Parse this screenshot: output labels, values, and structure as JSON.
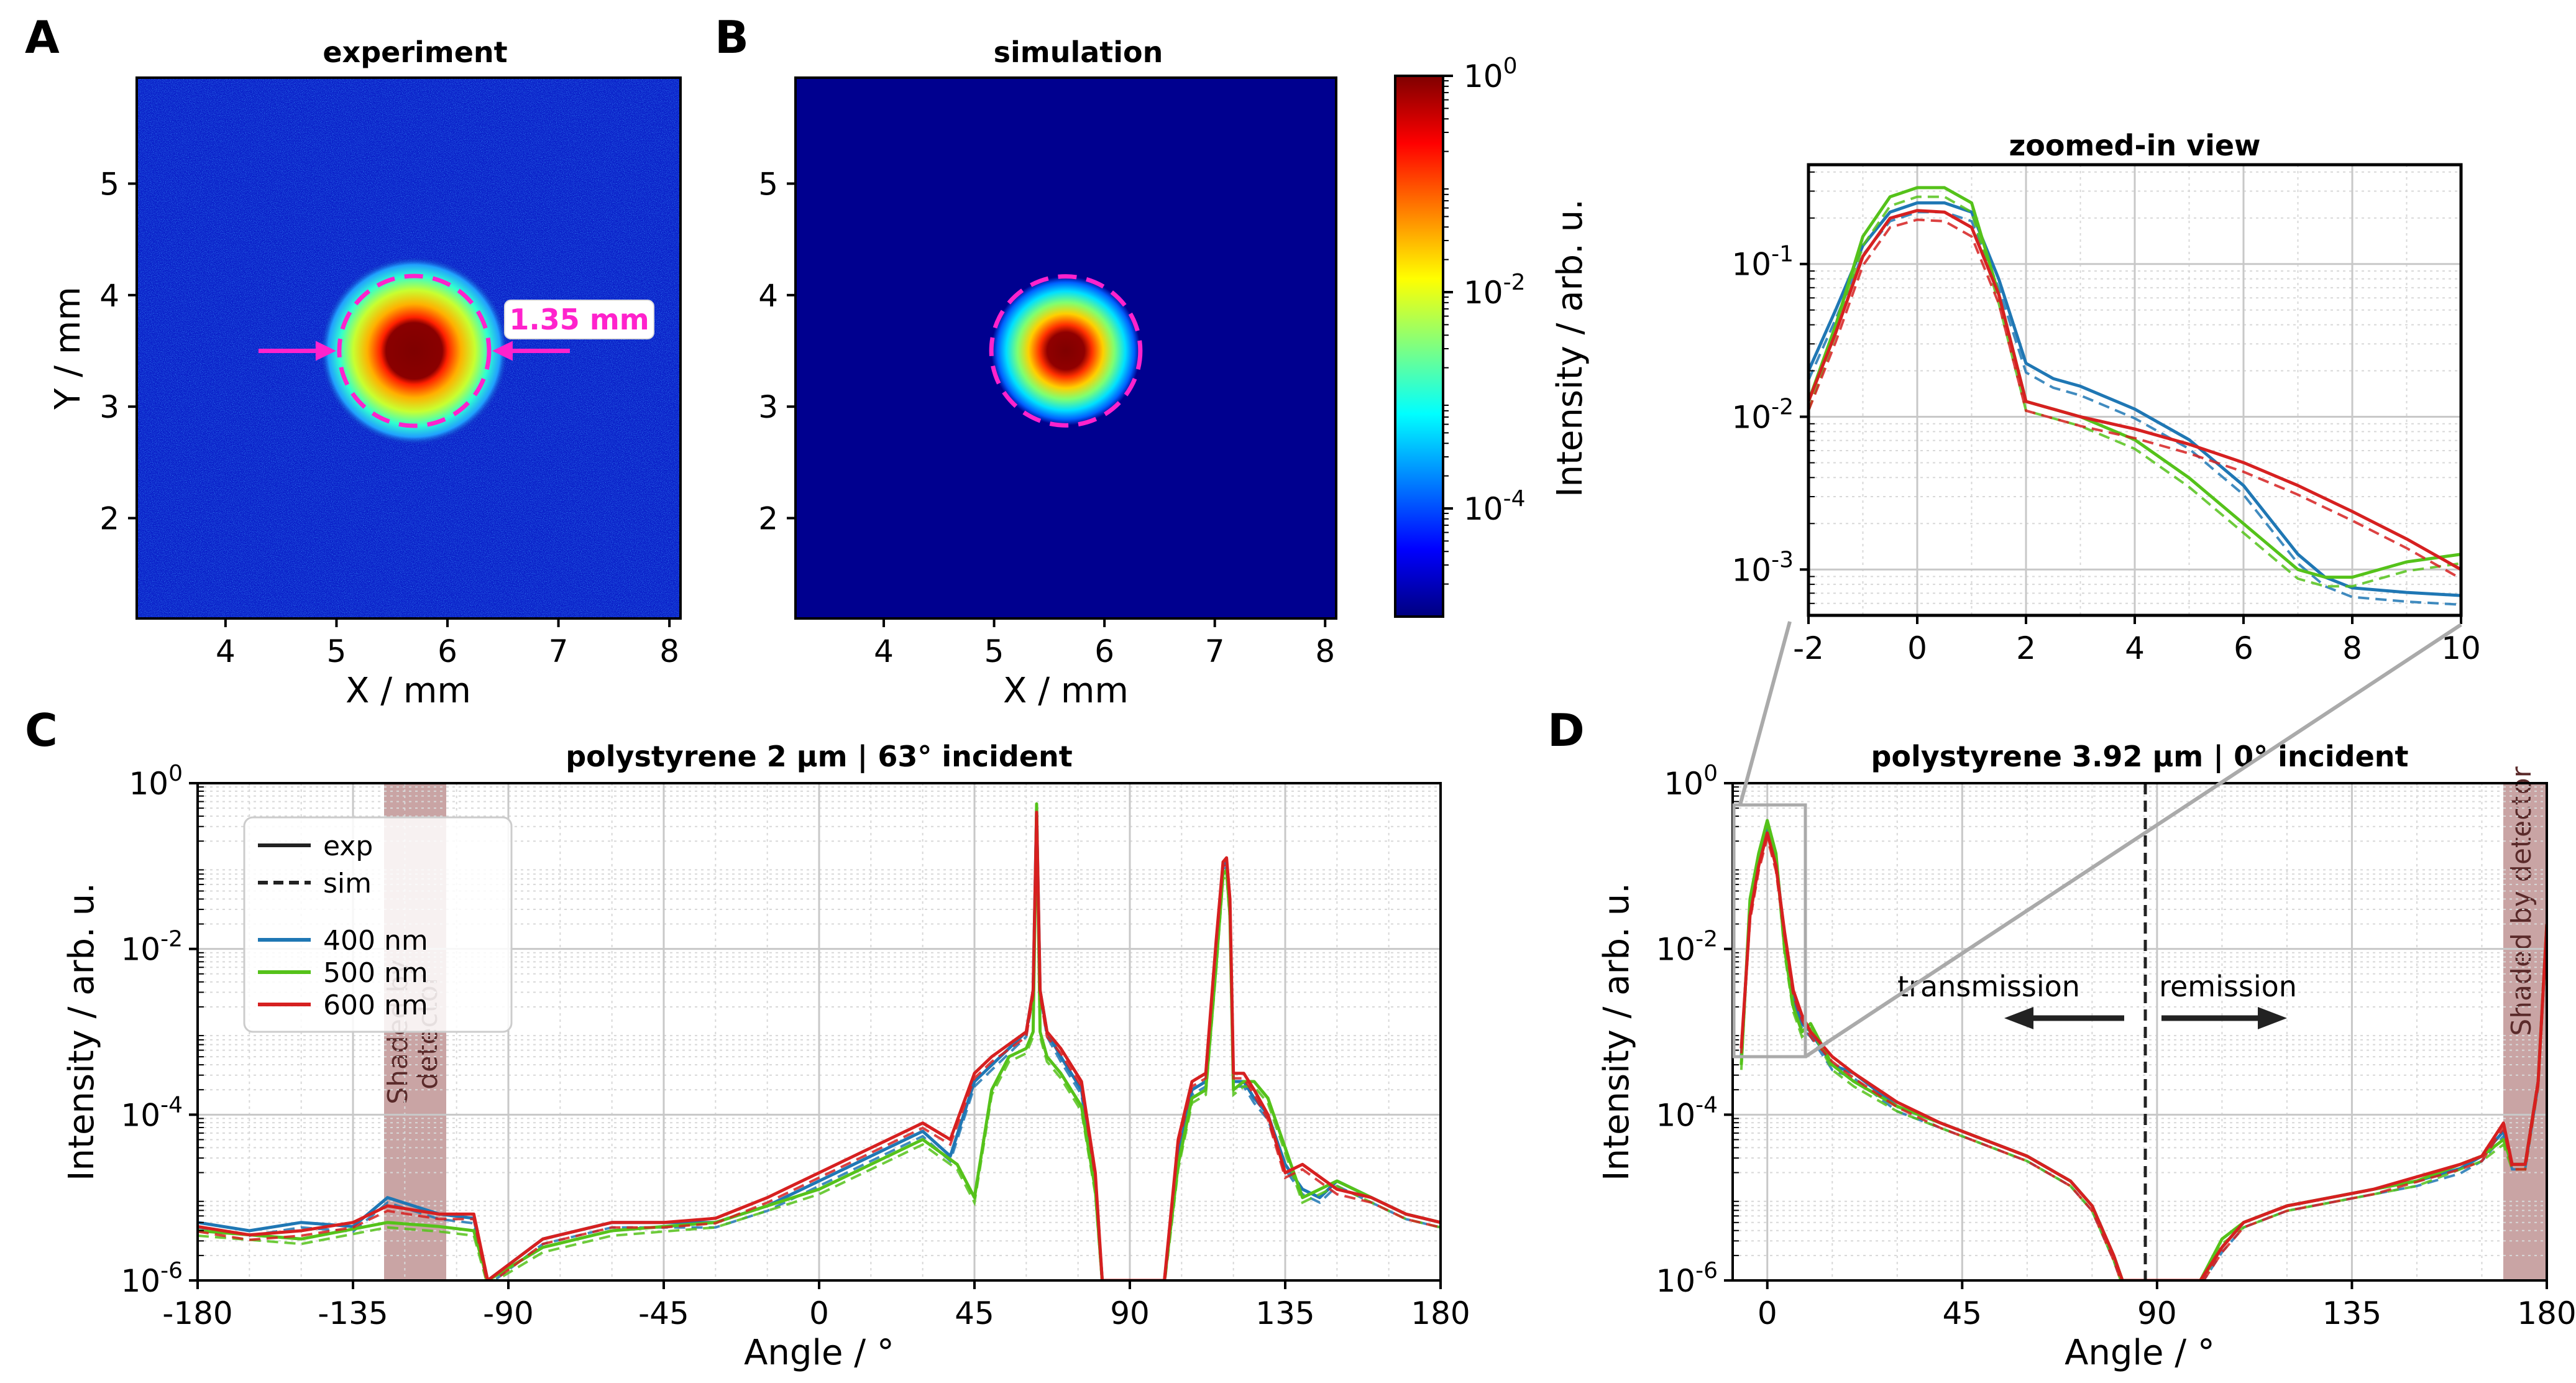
{
  "figure": {
    "panels": [
      {
        "id": "A",
        "title": "experiment",
        "xlabel": "X / mm",
        "ylabel": "Y / mm",
        "xticks": [
          "4",
          "5",
          "6",
          "7",
          "8"
        ],
        "yticks": [
          "2",
          "3",
          "4",
          "5"
        ],
        "annotation": "1.35 mm"
      },
      {
        "id": "B",
        "title": "simulation",
        "xlabel": "X / mm",
        "xticks": [
          "4",
          "5",
          "6",
          "7",
          "8"
        ],
        "yticks": [
          "2",
          "3",
          "4",
          "5"
        ],
        "colorbar": {
          "label": "Intensity / arb. u.",
          "ticks": [
            "10",
            "10",
            "10"
          ],
          "exponents": [
            "0",
            "-2",
            "-4"
          ]
        }
      },
      {
        "id": "C",
        "title": "polystyrene 2 µm | 63° incident",
        "xlabel": "Angle / °",
        "ylabel": "Intensity / arb. u.",
        "xticks": [
          "-180",
          "-135",
          "-90",
          "-45",
          "0",
          "45",
          "90",
          "135",
          "180"
        ],
        "shade_text": [
          "Shaded by",
          "detector"
        ],
        "legend": {
          "styles": [
            "exp",
            "sim"
          ],
          "wavelengths": [
            "400 nm",
            "500 nm",
            "600 nm"
          ]
        }
      },
      {
        "id": "D",
        "title": "polystyrene 3.92 µm | 0° incident",
        "xlabel": "Angle / °",
        "ylabel": "Intensity / arb. u.",
        "xticks": [
          "0",
          "45",
          "90",
          "135",
          "180"
        ],
        "shade_text": "Shaded by detector",
        "arrows": [
          "transmission",
          "remission"
        ]
      },
      {
        "id": "zoom",
        "title": "zoomed-in view",
        "xticks": [
          "-2",
          "0",
          "2",
          "4",
          "6",
          "8",
          "10"
        ]
      }
    ],
    "log_ticks": {
      "base": "10",
      "exponents_C": [
        "0",
        "-2",
        "-4",
        "-6"
      ],
      "exponents_zoom": [
        "-1",
        "-2",
        "-3"
      ]
    },
    "colors": {
      "400 nm": "#1f77b4",
      "500 nm": "#55c21a",
      "600 nm": "#d62020",
      "annotation": "#ff22cc",
      "shade": "#c9a4a4"
    }
  },
  "chart_data": [
    {
      "type": "heatmap",
      "panel": "A",
      "title": "experiment",
      "xlabel": "X / mm",
      "ylabel": "Y / mm",
      "xlim": [
        3.2,
        8.1
      ],
      "ylim": [
        1.1,
        5.95
      ],
      "spot_center": [
        5.7,
        3.5
      ],
      "ring_diameter_mm": 1.35,
      "colorscale": "log"
    },
    {
      "type": "heatmap",
      "panel": "B",
      "title": "simulation",
      "xlabel": "X / mm",
      "xlim": [
        3.2,
        8.1
      ],
      "ylim": [
        1.1,
        5.95
      ],
      "spot_center": [
        5.65,
        3.5
      ],
      "colorbar_range_log10": [
        -5,
        0
      ]
    },
    {
      "type": "line",
      "panel": "C",
      "title": "polystyrene 2 µm | 63° incident",
      "xlabel": "Angle / °",
      "ylabel": "Intensity / arb. u.",
      "xlim": [
        -180,
        180
      ],
      "ylim_log10": [
        -6,
        0
      ],
      "shaded_range": [
        -125,
        -107
      ],
      "series": [
        {
          "name": "400 nm",
          "style": "exp",
          "x": [
            -180,
            -165,
            -150,
            -135,
            -125,
            -110,
            -100,
            -96,
            -80,
            -60,
            -45,
            -30,
            -15,
            0,
            15,
            30,
            38,
            45,
            50,
            55,
            60,
            62,
            63,
            64,
            66,
            70,
            76,
            80,
            82,
            100,
            104,
            108,
            112,
            115,
            117,
            118,
            119,
            120,
            123,
            126,
            130,
            135,
            140,
            145,
            150,
            160,
            170,
            180
          ],
          "log10": [
            -5.3,
            -5.4,
            -5.3,
            -5.35,
            -5.0,
            -5.2,
            -5.25,
            -6,
            -5.5,
            -5.3,
            -5.3,
            -5.3,
            -5.1,
            -4.8,
            -4.5,
            -4.2,
            -4.5,
            -3.6,
            -3.4,
            -3.2,
            -3.0,
            -2.5,
            -0.3,
            -2.5,
            -3.0,
            -3.3,
            -3.7,
            -4.8,
            -6,
            -6,
            -4.5,
            -3.7,
            -3.6,
            -2.0,
            -1.0,
            -0.95,
            -1.5,
            -3.6,
            -3.6,
            -3.8,
            -4.0,
            -4.6,
            -4.9,
            -5.0,
            -4.8,
            -5.0,
            -5.2,
            -5.3
          ]
        },
        {
          "name": "500 nm",
          "style": "exp",
          "x": [
            -180,
            -150,
            -125,
            -110,
            -100,
            -96,
            -80,
            -60,
            -45,
            -30,
            -15,
            0,
            15,
            30,
            40,
            45,
            50,
            55,
            60,
            62,
            63,
            64,
            66,
            70,
            76,
            80,
            82,
            100,
            104,
            108,
            112,
            115,
            117,
            118,
            119,
            120,
            123,
            126,
            130,
            135,
            140,
            150,
            160,
            170,
            180
          ],
          "log10": [
            -5.4,
            -5.5,
            -5.3,
            -5.35,
            -5.4,
            -6,
            -5.6,
            -5.4,
            -5.35,
            -5.3,
            -5.1,
            -4.9,
            -4.6,
            -4.3,
            -4.6,
            -5.0,
            -3.7,
            -3.3,
            -3.2,
            -3.0,
            -0.25,
            -3.0,
            -3.3,
            -3.5,
            -3.9,
            -4.9,
            -6,
            -6,
            -4.6,
            -3.8,
            -3.7,
            -2.2,
            -1.1,
            -1.05,
            -1.6,
            -3.7,
            -3.6,
            -3.6,
            -3.8,
            -4.4,
            -5.0,
            -4.8,
            -5.0,
            -5.2,
            -5.3
          ]
        },
        {
          "name": "600 nm",
          "style": "exp",
          "x": [
            -180,
            -165,
            -150,
            -135,
            -125,
            -110,
            -100,
            -96,
            -80,
            -60,
            -45,
            -30,
            -15,
            0,
            15,
            30,
            38,
            45,
            50,
            55,
            60,
            62,
            63,
            64,
            66,
            70,
            76,
            80,
            82,
            100,
            104,
            108,
            112,
            115,
            117,
            118,
            119,
            120,
            123,
            126,
            130,
            135,
            140,
            150,
            160,
            170,
            180
          ],
          "log10": [
            -5.35,
            -5.45,
            -5.4,
            -5.3,
            -5.1,
            -5.2,
            -5.2,
            -6,
            -5.5,
            -5.3,
            -5.3,
            -5.25,
            -5.0,
            -4.7,
            -4.4,
            -4.1,
            -4.3,
            -3.5,
            -3.3,
            -3.15,
            -3.0,
            -2.5,
            -0.35,
            -2.5,
            -3.0,
            -3.2,
            -3.6,
            -4.7,
            -6,
            -6,
            -4.3,
            -3.6,
            -3.5,
            -1.9,
            -0.95,
            -0.9,
            -1.4,
            -3.5,
            -3.5,
            -3.7,
            -4.0,
            -4.7,
            -4.6,
            -4.9,
            -5.0,
            -5.2,
            -5.3
          ]
        }
      ]
    },
    {
      "type": "line",
      "panel": "D",
      "title": "polystyrene 3.92 µm | 0° incident",
      "xlabel": "Angle / °",
      "ylabel": "Intensity / arb. u.",
      "xlim": [
        -8,
        180
      ],
      "ylim_log10": [
        -6,
        0
      ],
      "shaded_range": [
        171,
        180
      ],
      "divider_x": 90,
      "series": [
        {
          "name": "400 nm",
          "style": "exp",
          "x": [
            -6,
            -4,
            -2,
            0,
            2,
            4,
            6,
            8,
            10,
            15,
            20,
            30,
            40,
            50,
            60,
            70,
            75,
            80,
            82,
            100,
            105,
            110,
            120,
            130,
            140,
            150,
            160,
            165,
            170,
            172,
            175,
            178,
            180
          ],
          "log10": [
            -3.3,
            -1.5,
            -0.9,
            -0.55,
            -0.9,
            -1.9,
            -2.6,
            -2.9,
            -3.0,
            -3.4,
            -3.5,
            -3.9,
            -4.1,
            -4.3,
            -4.5,
            -4.8,
            -5.1,
            -5.7,
            -6,
            -6,
            -5.6,
            -5.3,
            -5.1,
            -5.0,
            -4.9,
            -4.8,
            -4.65,
            -4.5,
            -4.2,
            -4.6,
            -4.6,
            -3.6,
            -1.7
          ]
        },
        {
          "name": "500 nm",
          "style": "exp",
          "x": [
            -6,
            -4,
            -2,
            0,
            2,
            4,
            6,
            8,
            10,
            15,
            20,
            30,
            40,
            50,
            60,
            70,
            75,
            80,
            82,
            100,
            105,
            110,
            120,
            130,
            140,
            150,
            160,
            165,
            170,
            172,
            175,
            178,
            180
          ],
          "log10": [
            -3.4,
            -1.4,
            -0.85,
            -0.45,
            -0.85,
            -2.0,
            -2.7,
            -3.0,
            -2.9,
            -3.4,
            -3.6,
            -3.9,
            -4.1,
            -4.3,
            -4.5,
            -4.8,
            -5.1,
            -5.7,
            -6,
            -6,
            -5.5,
            -5.3,
            -5.1,
            -5.0,
            -4.9,
            -4.8,
            -4.6,
            -4.5,
            -4.3,
            -4.6,
            -4.6,
            -3.6,
            -1.7
          ]
        },
        {
          "name": "600 nm",
          "style": "exp",
          "x": [
            -6,
            -4,
            -2,
            0,
            2,
            4,
            6,
            8,
            10,
            15,
            20,
            30,
            40,
            50,
            60,
            70,
            75,
            80,
            82,
            100,
            105,
            110,
            120,
            130,
            140,
            150,
            160,
            165,
            170,
            172,
            175,
            178,
            180
          ],
          "log10": [
            -3.2,
            -1.6,
            -1.0,
            -0.6,
            -1.0,
            -1.8,
            -2.5,
            -2.8,
            -3.0,
            -3.3,
            -3.5,
            -3.85,
            -4.1,
            -4.3,
            -4.5,
            -4.8,
            -5.1,
            -5.7,
            -6,
            -6,
            -5.6,
            -5.3,
            -5.1,
            -5.0,
            -4.9,
            -4.75,
            -4.6,
            -4.5,
            -4.1,
            -4.6,
            -4.6,
            -3.6,
            -1.7
          ]
        }
      ]
    },
    {
      "type": "line",
      "panel": "zoom",
      "title": "zoomed-in view",
      "xlim": [
        -2,
        10
      ],
      "ylim_log10": [
        -3.3,
        -0.35
      ],
      "series": [
        {
          "name": "400 nm",
          "style": "exp",
          "x": [
            -2,
            -1.5,
            -1,
            -0.5,
            0,
            0.5,
            1,
            1.5,
            2,
            2.5,
            3,
            4,
            5,
            6,
            7,
            7.5,
            8,
            9,
            10
          ],
          "log10": [
            -1.7,
            -1.3,
            -0.88,
            -0.66,
            -0.6,
            -0.6,
            -0.66,
            -1.1,
            -1.65,
            -1.75,
            -1.8,
            -1.95,
            -2.15,
            -2.45,
            -2.9,
            -3.05,
            -3.12,
            -3.15,
            -3.17
          ]
        },
        {
          "name": "500 nm",
          "style": "exp",
          "x": [
            -2,
            -1.5,
            -1,
            -0.5,
            0,
            0.5,
            1,
            1.5,
            2,
            2.5,
            3,
            4,
            5,
            6,
            6.5,
            7,
            7.5,
            8,
            9,
            10
          ],
          "log10": [
            -1.9,
            -1.4,
            -0.82,
            -0.56,
            -0.5,
            -0.5,
            -0.6,
            -1.2,
            -1.9,
            -1.95,
            -2.0,
            -2.15,
            -2.4,
            -2.7,
            -2.85,
            -3.0,
            -3.05,
            -3.05,
            -2.95,
            -2.9
          ]
        },
        {
          "name": "600 nm",
          "style": "exp",
          "x": [
            -2,
            -1.5,
            -1,
            -0.5,
            0,
            0.5,
            1,
            1.5,
            2,
            2.5,
            3,
            4,
            5,
            6,
            7,
            8,
            9,
            10
          ],
          "log10": [
            -1.9,
            -1.45,
            -0.95,
            -0.7,
            -0.65,
            -0.66,
            -0.76,
            -1.2,
            -1.9,
            -1.95,
            -2.0,
            -2.08,
            -2.18,
            -2.3,
            -2.45,
            -2.62,
            -2.8,
            -3.0
          ]
        }
      ]
    }
  ]
}
